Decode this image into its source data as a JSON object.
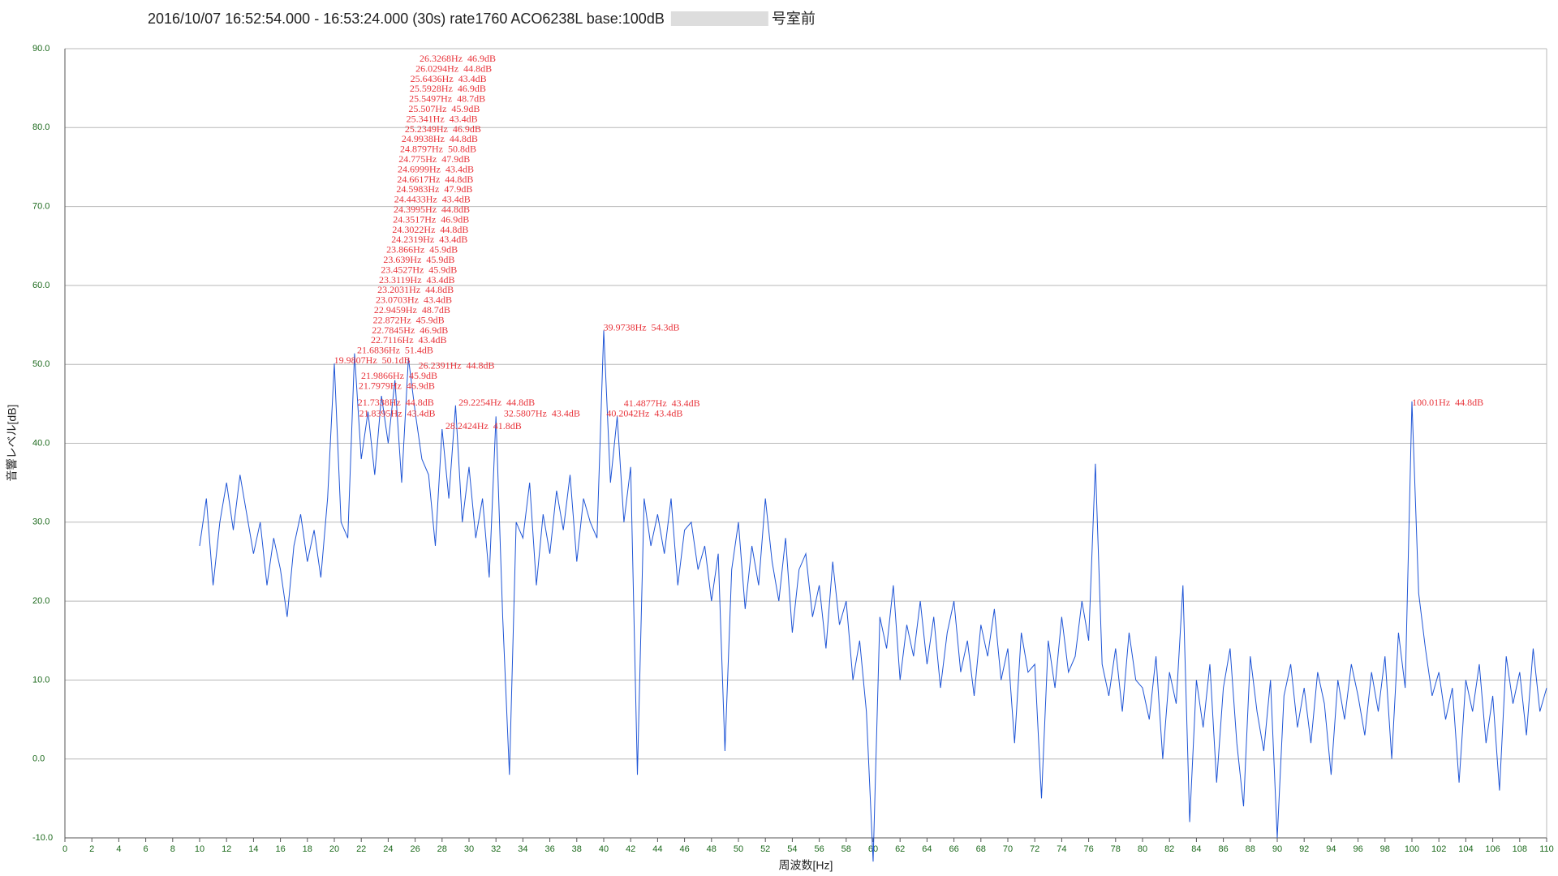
{
  "chart_data": {
    "type": "line",
    "title": "2016/10/07 16:52:54.000 - 16:53:24.000 (30s) rate1760 ACO6238L base:100dB",
    "title_suffix": "号室前",
    "x_label": "周波数[Hz]",
    "y_label": "音響レベル[dB]",
    "color": "#1f55d6",
    "grid": true,
    "xlim": [
      0,
      110
    ],
    "ylim": [
      -10,
      90
    ],
    "xticks": [
      0,
      2,
      4,
      6,
      8,
      10,
      12,
      14,
      16,
      18,
      20,
      22,
      24,
      26,
      28,
      30,
      32,
      34,
      36,
      38,
      40,
      42,
      44,
      46,
      48,
      50,
      52,
      54,
      56,
      58,
      60,
      62,
      64,
      66,
      68,
      70,
      72,
      74,
      76,
      78,
      80,
      82,
      84,
      86,
      88,
      90,
      92,
      94,
      96,
      98,
      100,
      102,
      104,
      106,
      108,
      110
    ],
    "yticks": [
      {
        "value": -10,
        "label": "-10.0"
      },
      {
        "value": 0,
        "label": "0.0"
      },
      {
        "value": 10,
        "label": "10.0"
      },
      {
        "value": 20,
        "label": "20.0"
      },
      {
        "value": 30,
        "label": "30.0"
      },
      {
        "value": 40,
        "label": "40.0"
      },
      {
        "value": 50,
        "label": "50.0"
      },
      {
        "value": 60,
        "label": "60.0"
      },
      {
        "value": 70,
        "label": "70.0"
      },
      {
        "value": 80,
        "label": "80.0"
      },
      {
        "value": 90,
        "label": "90.0"
      }
    ],
    "x": [
      10,
      10.5,
      11,
      11.5,
      12,
      12.5,
      13,
      13.5,
      14,
      14.5,
      15,
      15.5,
      16,
      16.5,
      17,
      17.5,
      18,
      18.5,
      19,
      19.5,
      20,
      20.5,
      21,
      21.5,
      22,
      22.5,
      23,
      23.5,
      24,
      24.5,
      25,
      25.5,
      26,
      26.5,
      27,
      27.5,
      28,
      28.5,
      29,
      29.5,
      30,
      30.5,
      31,
      31.5,
      32,
      32.5,
      33,
      33.5,
      34,
      34.5,
      35,
      35.5,
      36,
      36.5,
      37,
      37.5,
      38,
      38.5,
      39,
      39.5,
      40,
      40.5,
      41,
      41.5,
      42,
      42.5,
      43,
      43.5,
      44,
      44.5,
      45,
      45.5,
      46,
      46.5,
      47,
      47.5,
      48,
      48.5,
      49,
      49.5,
      50,
      50.5,
      51,
      51.5,
      52,
      52.5,
      53,
      53.5,
      54,
      54.5,
      55,
      55.5,
      56,
      56.5,
      57,
      57.5,
      58,
      58.5,
      59,
      59.5,
      60,
      60.5,
      61,
      61.5,
      62,
      62.5,
      63,
      63.5,
      64,
      64.5,
      65,
      65.5,
      66,
      66.5,
      67,
      67.5,
      68,
      68.5,
      69,
      69.5,
      70,
      70.5,
      71,
      71.5,
      72,
      72.5,
      73,
      73.5,
      74,
      74.5,
      75,
      75.5,
      76,
      76.5,
      77,
      77.5,
      78,
      78.5,
      79,
      79.5,
      80,
      80.5,
      81,
      81.5,
      82,
      82.5,
      83,
      83.5,
      84,
      84.5,
      85,
      85.5,
      86,
      86.5,
      87,
      87.5,
      88,
      88.5,
      89,
      89.5,
      90,
      90.5,
      91,
      91.5,
      92,
      92.5,
      93,
      93.5,
      94,
      94.5,
      95,
      95.5,
      96,
      96.5,
      97,
      97.5,
      98,
      98.5,
      99,
      99.5,
      100,
      100.5,
      101,
      101.5,
      102,
      102.5,
      103,
      103.5,
      104,
      104.5,
      105,
      105.5,
      106,
      106.5,
      107,
      107.5,
      108,
      108.5,
      109,
      109.5,
      110
    ],
    "values": [
      27,
      33,
      22,
      30,
      35,
      29,
      36,
      31,
      26,
      30,
      22,
      28,
      24,
      18,
      27,
      31,
      25,
      29,
      23,
      33,
      50.1,
      30,
      28,
      51.4,
      38,
      44,
      36,
      46,
      40,
      48,
      35,
      50.8,
      44,
      38,
      36,
      27,
      41.8,
      33,
      44.8,
      30,
      37,
      28,
      33,
      23,
      43.4,
      18,
      -2,
      30,
      28,
      35,
      22,
      31,
      26,
      34,
      29,
      36,
      25,
      33,
      30,
      28,
      54.3,
      35,
      43.4,
      30,
      37,
      -2,
      33,
      27,
      31,
      26,
      33,
      22,
      29,
      30,
      24,
      27,
      20,
      26,
      1,
      24,
      30,
      19,
      27,
      22,
      33,
      25,
      20,
      28,
      16,
      24,
      26,
      18,
      22,
      14,
      25,
      17,
      20,
      10,
      15,
      6,
      -13,
      18,
      14,
      22,
      10,
      17,
      13,
      20,
      12,
      18,
      9,
      16,
      20,
      11,
      15,
      8,
      17,
      13,
      19,
      10,
      14,
      2,
      16,
      11,
      12,
      -5,
      15,
      9,
      18,
      11,
      13,
      20,
      15,
      37.4,
      12,
      8,
      14,
      6,
      16,
      10,
      9,
      5,
      13,
      0,
      11,
      7,
      22,
      -8,
      10,
      4,
      12,
      -3,
      9,
      14,
      2,
      -6,
      13,
      6,
      1,
      10,
      -10,
      8,
      12,
      4,
      9,
      2,
      11,
      7,
      -2,
      10,
      5,
      12,
      8,
      3,
      11,
      6,
      13,
      0,
      16,
      9,
      45.3,
      21,
      14,
      8,
      11,
      5,
      9,
      -3,
      10,
      6,
      12,
      2,
      8,
      -4,
      13,
      7,
      11,
      3,
      14,
      6,
      9
    ],
    "annotations": [
      {
        "text": "21.8395Hz  43.4dB",
        "x": 21.8395,
        "y": 43.4
      },
      {
        "text": "21.7338Hz  44.8dB",
        "x": 21.7338,
        "y": 44.8
      },
      {
        "text": "21.7979Hz  46.9dB",
        "x": 21.7979,
        "y": 46.9
      },
      {
        "text": "21.9866Hz  45.9dB",
        "x": 21.9866,
        "y": 45.9
      },
      {
        "text": "28.2424Hz  41.8dB",
        "x": 28.2424,
        "y": 41.8
      },
      {
        "text": "29.2254Hz  44.8dB",
        "x": 29.2254,
        "y": 44.8
      },
      {
        "text": "32.5807Hz  43.4dB",
        "x": 32.5807,
        "y": 43.4
      },
      {
        "text": "40.2042Hz  43.4dB",
        "x": 40.2042,
        "y": 43.4
      },
      {
        "text": "41.4877Hz  43.4dB",
        "x": 41.4877,
        "y": 43.4
      },
      {
        "text": "39.9738Hz  54.3dB",
        "x": 39.9738,
        "y": 54.3
      },
      {
        "text": "100.01Hz  44.8dB",
        "x": 100.01,
        "y": 44.8
      },
      {
        "text": "26.2391Hz  44.8dB",
        "x": 26.2391,
        "y": 44.8
      },
      {
        "text": "19.9807Hz  50.1dB",
        "x": 19.9807,
        "y": 50.1
      },
      {
        "text": "21.6836Hz  51.4dB",
        "x": 21.6836,
        "y": 51.4
      },
      {
        "text": "22.7116Hz  43.4dB",
        "x": 22.7116,
        "y": 43.4
      },
      {
        "text": "22.7845Hz  46.9dB",
        "x": 22.7845,
        "y": 46.9
      },
      {
        "text": "22.872Hz  45.9dB",
        "x": 22.872,
        "y": 45.9
      },
      {
        "text": "22.9459Hz  48.7dB",
        "x": 22.9459,
        "y": 48.7
      },
      {
        "text": "23.0703Hz  43.4dB",
        "x": 23.0703,
        "y": 43.4
      },
      {
        "text": "23.2031Hz  44.8dB",
        "x": 23.2031,
        "y": 44.8
      },
      {
        "text": "23.3119Hz  43.4dB",
        "x": 23.3119,
        "y": 43.4
      },
      {
        "text": "23.4527Hz  45.9dB",
        "x": 23.4527,
        "y": 45.9
      },
      {
        "text": "23.639Hz  45.9dB",
        "x": 23.639,
        "y": 45.9
      },
      {
        "text": "23.866Hz  45.9dB",
        "x": 23.866,
        "y": 45.9
      },
      {
        "text": "24.2319Hz  43.4dB",
        "x": 24.2319,
        "y": 43.4
      },
      {
        "text": "24.3022Hz  44.8dB",
        "x": 24.3022,
        "y": 44.8
      },
      {
        "text": "24.3517Hz  46.9dB",
        "x": 24.3517,
        "y": 46.9
      },
      {
        "text": "24.3995Hz  44.8dB",
        "x": 24.3995,
        "y": 44.8
      },
      {
        "text": "24.4433Hz  43.4dB",
        "x": 24.4433,
        "y": 43.4
      },
      {
        "text": "24.5983Hz  47.9dB",
        "x": 24.5983,
        "y": 47.9
      },
      {
        "text": "24.6617Hz  44.8dB",
        "x": 24.6617,
        "y": 44.8
      },
      {
        "text": "24.6999Hz  43.4dB",
        "x": 24.6999,
        "y": 43.4
      },
      {
        "text": "24.775Hz  47.9dB",
        "x": 24.775,
        "y": 47.9
      },
      {
        "text": "24.8797Hz  50.8dB",
        "x": 24.8797,
        "y": 50.8
      },
      {
        "text": "24.9938Hz  44.8dB",
        "x": 24.9938,
        "y": 44.8
      },
      {
        "text": "25.2349Hz  46.9dB",
        "x": 25.2349,
        "y": 46.9
      },
      {
        "text": "25.341Hz  43.4dB",
        "x": 25.341,
        "y": 43.4
      },
      {
        "text": "25.507Hz  45.9dB",
        "x": 25.507,
        "y": 45.9
      },
      {
        "text": "25.5497Hz  48.7dB",
        "x": 25.5497,
        "y": 48.7
      },
      {
        "text": "25.5928Hz  46.9dB",
        "x": 25.5928,
        "y": 46.9
      },
      {
        "text": "25.6436Hz  43.4dB",
        "x": 25.6436,
        "y": 43.4
      },
      {
        "text": "26.0294Hz  44.8dB",
        "x": 26.0294,
        "y": 44.8
      },
      {
        "text": "26.3268Hz  46.9dB",
        "x": 26.3268,
        "y": 46.9
      }
    ]
  }
}
